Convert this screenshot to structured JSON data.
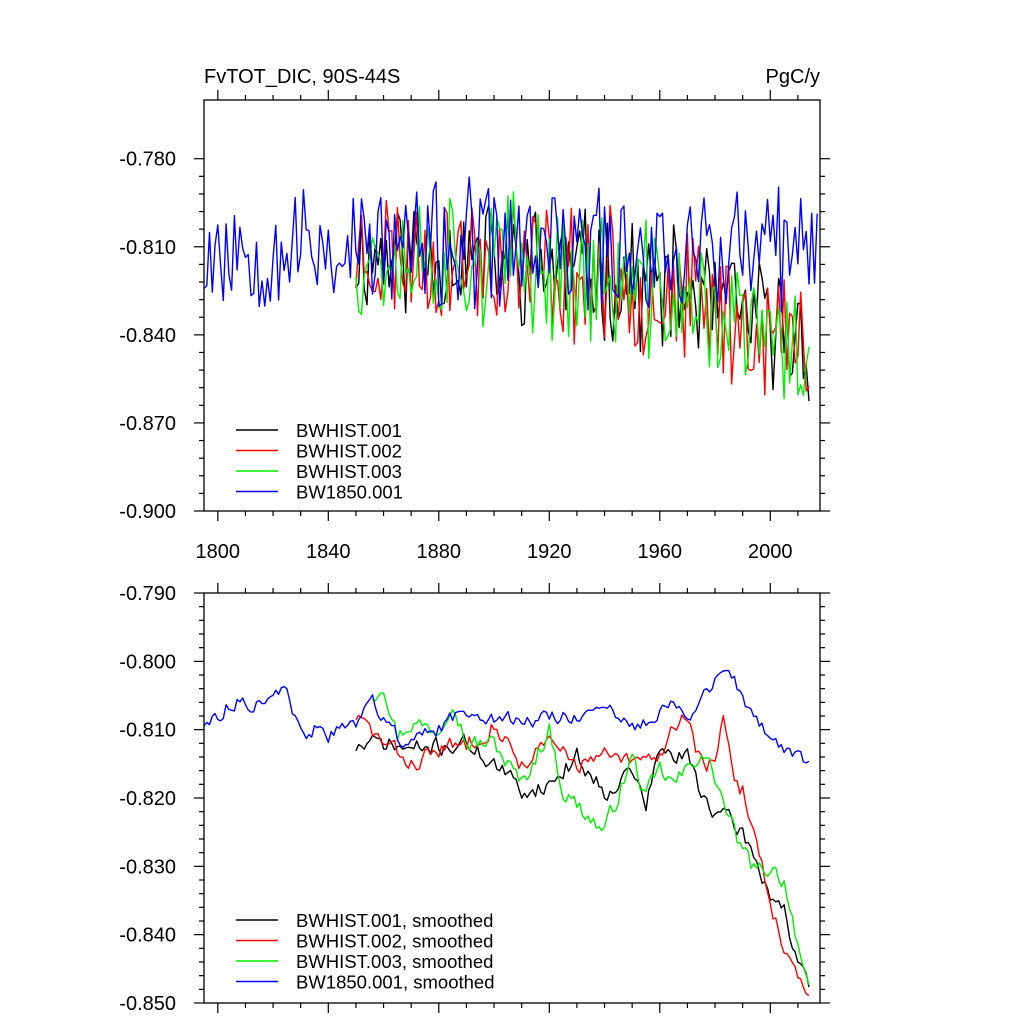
{
  "chart_data": [
    {
      "type": "line",
      "title_left": "FvTOT_DIC, 90S-44S",
      "title_right": "PgC/y",
      "xlabel": "",
      "ylabel": "",
      "xlim": [
        1795,
        2018
      ],
      "ylim": [
        -0.9,
        -0.76
      ],
      "xticks": [
        1800,
        1840,
        1880,
        1920,
        1960,
        2000
      ],
      "yticks": [
        -0.78,
        -0.81,
        -0.84,
        -0.87,
        -0.9
      ],
      "ytick_labels": [
        "-0.780",
        "-0.810",
        "-0.840",
        "-0.870",
        "-0.900"
      ],
      "legend_position": "bottom-left",
      "series": [
        {
          "name": "BWHIST.001",
          "color": "#000000",
          "start": 1850,
          "end": 2014,
          "mean_start": -0.812,
          "mean_end": -0.842,
          "amp": 0.018,
          "noise": 0.012,
          "seed": 11,
          "lo": -0.866,
          "hi": -0.783
        },
        {
          "name": "BWHIST.002",
          "color": "#ff0000",
          "start": 1850,
          "end": 2014,
          "mean_start": -0.812,
          "mean_end": -0.845,
          "amp": 0.02,
          "noise": 0.013,
          "seed": 23,
          "lo": -0.885,
          "hi": -0.772
        },
        {
          "name": "BWHIST.003",
          "color": "#00ee00",
          "start": 1850,
          "end": 2014,
          "mean_start": -0.812,
          "mean_end": -0.848,
          "amp": 0.02,
          "noise": 0.013,
          "seed": 37,
          "lo": -0.891,
          "hi": -0.771
        },
        {
          "name": "BW1850.001",
          "color": "#0000ff",
          "start": 1795,
          "end": 2017,
          "mean_start": -0.81,
          "mean_end": -0.812,
          "amp": 0.019,
          "noise": 0.012,
          "seed": 53,
          "lo": -0.865,
          "hi": -0.771
        }
      ]
    },
    {
      "type": "line",
      "title_left": "",
      "title_right": "",
      "xlabel": "",
      "ylabel": "",
      "xlim": [
        1795,
        2018
      ],
      "ylim": [
        -0.85,
        -0.79
      ],
      "xticks": [
        1800,
        1840,
        1880,
        1920,
        1960,
        2000
      ],
      "yticks": [
        -0.79,
        -0.8,
        -0.81,
        -0.82,
        -0.83,
        -0.84,
        -0.85
      ],
      "ytick_labels": [
        "-0.790",
        "-0.800",
        "-0.810",
        "-0.820",
        "-0.830",
        "-0.840",
        "-0.850"
      ],
      "legend_position": "bottom-left",
      "series": [
        {
          "name": "BWHIST.001, smoothed",
          "color": "#000000",
          "knots": [
            [
              1850,
              -0.8125
            ],
            [
              1860,
              -0.812
            ],
            [
              1870,
              -0.813
            ],
            [
              1880,
              -0.8125
            ],
            [
              1890,
              -0.812
            ],
            [
              1900,
              -0.815
            ],
            [
              1910,
              -0.819
            ],
            [
              1920,
              -0.818
            ],
            [
              1930,
              -0.814
            ],
            [
              1940,
              -0.819
            ],
            [
              1950,
              -0.816
            ],
            [
              1955,
              -0.821
            ],
            [
              1960,
              -0.813
            ],
            [
              1965,
              -0.814
            ],
            [
              1970,
              -0.814
            ],
            [
              1975,
              -0.819
            ],
            [
              1980,
              -0.822
            ],
            [
              1990,
              -0.825
            ],
            [
              2000,
              -0.834
            ],
            [
              2005,
              -0.836
            ],
            [
              2010,
              -0.845
            ],
            [
              2014,
              -0.848
            ]
          ],
          "wiggle": 0.0022,
          "seed": 71
        },
        {
          "name": "BWHIST.002, smoothed",
          "color": "#ff0000",
          "knots": [
            [
              1850,
              -0.808
            ],
            [
              1860,
              -0.812
            ],
            [
              1870,
              -0.815
            ],
            [
              1880,
              -0.813
            ],
            [
              1890,
              -0.812
            ],
            [
              1900,
              -0.809
            ],
            [
              1910,
              -0.815
            ],
            [
              1920,
              -0.812
            ],
            [
              1930,
              -0.815
            ],
            [
              1940,
              -0.814
            ],
            [
              1950,
              -0.815
            ],
            [
              1960,
              -0.814
            ],
            [
              1965,
              -0.809
            ],
            [
              1970,
              -0.808
            ],
            [
              1975,
              -0.815
            ],
            [
              1980,
              -0.815
            ],
            [
              1983,
              -0.809
            ],
            [
              1987,
              -0.818
            ],
            [
              1990,
              -0.819
            ],
            [
              1995,
              -0.826
            ],
            [
              2000,
              -0.835
            ],
            [
              2005,
              -0.842
            ],
            [
              2010,
              -0.847
            ],
            [
              2014,
              -0.85
            ]
          ],
          "wiggle": 0.0022,
          "seed": 83
        },
        {
          "name": "BWHIST.003, smoothed",
          "color": "#00ee00",
          "knots": [
            [
              1856,
              -0.805
            ],
            [
              1860,
              -0.803
            ],
            [
              1865,
              -0.811
            ],
            [
              1870,
              -0.809
            ],
            [
              1880,
              -0.81
            ],
            [
              1885,
              -0.805
            ],
            [
              1890,
              -0.812
            ],
            [
              1900,
              -0.812
            ],
            [
              1910,
              -0.818
            ],
            [
              1920,
              -0.81
            ],
            [
              1925,
              -0.819
            ],
            [
              1930,
              -0.821
            ],
            [
              1940,
              -0.825
            ],
            [
              1950,
              -0.814
            ],
            [
              1955,
              -0.82
            ],
            [
              1960,
              -0.816
            ],
            [
              1965,
              -0.818
            ],
            [
              1970,
              -0.816
            ],
            [
              1975,
              -0.813
            ],
            [
              1980,
              -0.817
            ],
            [
              1985,
              -0.823
            ],
            [
              1990,
              -0.828
            ],
            [
              1995,
              -0.831
            ],
            [
              2000,
              -0.83
            ],
            [
              2005,
              -0.832
            ],
            [
              2010,
              -0.841
            ],
            [
              2014,
              -0.849
            ]
          ],
          "wiggle": 0.0022,
          "seed": 97
        },
        {
          "name": "BW1850.001, smoothed",
          "color": "#0000ff",
          "knots": [
            [
              1795,
              -0.809
            ],
            [
              1800,
              -0.808
            ],
            [
              1805,
              -0.806
            ],
            [
              1810,
              -0.806
            ],
            [
              1815,
              -0.806
            ],
            [
              1820,
              -0.804
            ],
            [
              1825,
              -0.805
            ],
            [
              1830,
              -0.811
            ],
            [
              1835,
              -0.81
            ],
            [
              1840,
              -0.811
            ],
            [
              1845,
              -0.81
            ],
            [
              1850,
              -0.809
            ],
            [
              1855,
              -0.805
            ],
            [
              1860,
              -0.808
            ],
            [
              1865,
              -0.811
            ],
            [
              1870,
              -0.812
            ],
            [
              1880,
              -0.81
            ],
            [
              1890,
              -0.807
            ],
            [
              1900,
              -0.808
            ],
            [
              1910,
              -0.809
            ],
            [
              1920,
              -0.808
            ],
            [
              1930,
              -0.808
            ],
            [
              1940,
              -0.807
            ],
            [
              1950,
              -0.81
            ],
            [
              1960,
              -0.807
            ],
            [
              1965,
              -0.805
            ],
            [
              1970,
              -0.809
            ],
            [
              1975,
              -0.806
            ],
            [
              1980,
              -0.803
            ],
            [
              1985,
              -0.8005
            ],
            [
              1990,
              -0.806
            ],
            [
              1995,
              -0.809
            ],
            [
              2000,
              -0.811
            ],
            [
              2005,
              -0.813
            ],
            [
              2010,
              -0.814
            ],
            [
              2014,
              -0.815
            ]
          ],
          "wiggle": 0.0018,
          "seed": 113
        }
      ]
    }
  ]
}
